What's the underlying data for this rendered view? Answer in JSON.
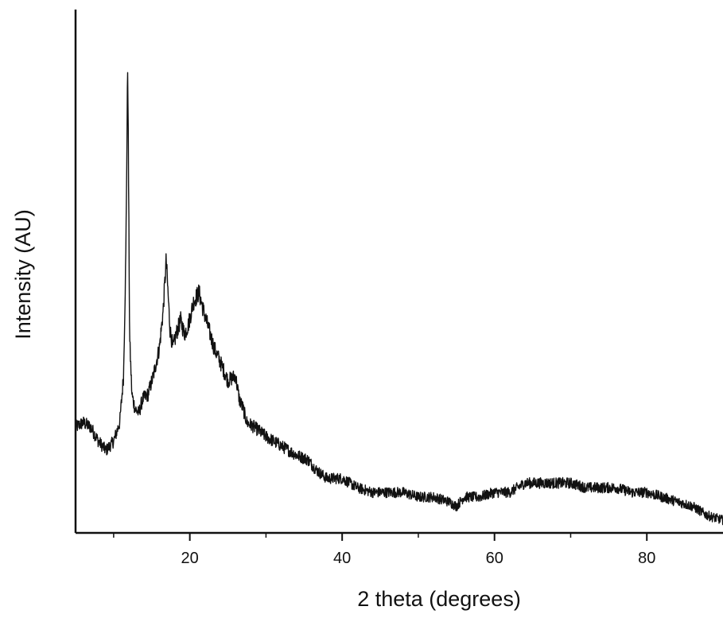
{
  "chart_data": {
    "type": "line",
    "xlabel": "2 theta (degrees)",
    "ylabel": "Intensity (AU)",
    "xlim": [
      5,
      90
    ],
    "ylim": [
      0,
      100
    ],
    "y_tick_labels_shown": false,
    "x_ticks_major": [
      20,
      40,
      60,
      80
    ],
    "x_ticks_minor": [
      10,
      30,
      50,
      70
    ],
    "grid": false,
    "legend": "none",
    "line_color": "#111111",
    "series": [
      {
        "x": [
          5,
          6,
          7,
          8,
          9,
          10,
          10.8,
          11.3,
          11.6,
          11.85,
          12.1,
          12.4,
          12.8,
          13.3,
          13.8,
          14.5,
          15.2,
          16.0,
          16.5,
          16.9,
          17.1,
          17.4,
          17.8,
          18.2,
          18.8,
          19.3,
          19.8,
          20.5,
          21.2,
          21.8,
          22.5,
          23.2,
          24.0,
          25.0,
          26.0,
          26.5,
          27.0,
          27.5,
          28.5,
          30,
          32,
          34,
          35.5,
          36.5,
          37.2,
          38,
          40,
          42,
          44,
          46,
          48,
          50,
          52,
          54,
          55,
          56,
          58,
          60,
          62,
          64,
          66,
          68,
          70,
          72,
          74,
          76,
          78,
          80,
          82,
          84,
          86,
          88,
          90
        ],
        "y": [
          21,
          22,
          21,
          18,
          16,
          18,
          22,
          32,
          58,
          100,
          40,
          28,
          25,
          24,
          27,
          28,
          32,
          38,
          46,
          57,
          51,
          42,
          38,
          41,
          44,
          41,
          43,
          48,
          50,
          46,
          42,
          38,
          35,
          31,
          32,
          27,
          25,
          22,
          21,
          19,
          17,
          15,
          14,
          12,
          11,
          10,
          10,
          8,
          7,
          7,
          7,
          6,
          6,
          5,
          4,
          6,
          6,
          7,
          7,
          9,
          9,
          9,
          9,
          8,
          8,
          8,
          7,
          7,
          6,
          5,
          4,
          2,
          1
        ]
      }
    ]
  }
}
